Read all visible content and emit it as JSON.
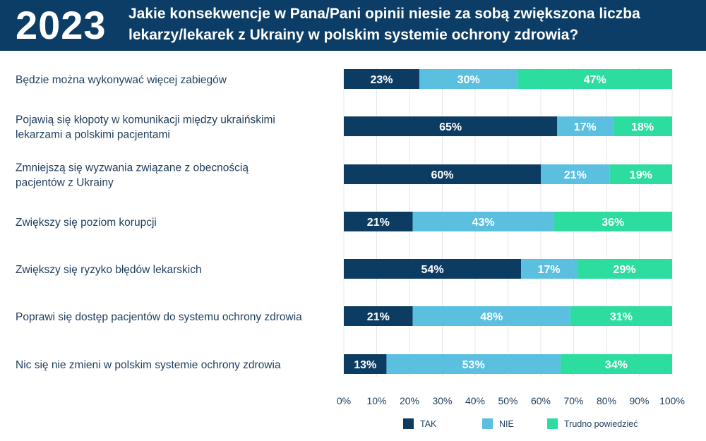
{
  "header": {
    "year": "2023",
    "title": "Jakie konsekwencje w Pana/Pani opinii niesie za sobą zwiększona liczba lekarzy/lekarek z Ukrainy w polskim systemie ochrony zdrowia?"
  },
  "colors": {
    "header_bg": "#0b3d66",
    "tak": "#0d3c63",
    "nie": "#5bbfe0",
    "trudno": "#2ddd9f",
    "label_text": "#1f3d5c"
  },
  "chart_data": {
    "type": "bar",
    "orientation": "horizontal",
    "stacked": true,
    "categories": [
      "Będzie można wykonywać więcej zabiegów",
      "Pojawią się kłopoty w komunikacji między ukraińskimi lekarzami a polskimi pacjentami",
      "Zmniejszą się wyzwania związane z obecnością pacjentów z Ukrainy",
      "Zwiększy się poziom korupcji",
      "Zwiększy się ryzyko błędów lekarskich",
      "Poprawi się dostęp pacjentów do systemu ochrony zdrowia",
      "Nic się nie zmieni w polskim systemie ochrony zdrowia"
    ],
    "category_lines": [
      [
        "Będzie można wykonywać więcej zabiegów"
      ],
      [
        "Pojawią się kłopoty w komunikacji między ukraińskimi",
        "lekarzami a polskimi pacjentami"
      ],
      [
        "Zmniejszą się wyzwania związane z obecnością",
        "pacjentów z Ukrainy"
      ],
      [
        "Zwiększy się poziom korupcji"
      ],
      [
        "Zwiększy się ryzyko błędów lekarskich"
      ],
      [
        "Poprawi się dostęp pacjentów do systemu ochrony zdrowia"
      ],
      [
        "Nic się nie zmieni w polskim systemie ochrony zdrowia"
      ]
    ],
    "series": [
      {
        "name": "TAK",
        "values": [
          23,
          65,
          60,
          21,
          54,
          21,
          13
        ]
      },
      {
        "name": "NIE",
        "values": [
          30,
          17,
          21,
          43,
          17,
          48,
          53
        ]
      },
      {
        "name": "Trudno powiedzieć",
        "values": [
          47,
          18,
          19,
          36,
          29,
          31,
          34
        ]
      }
    ],
    "value_suffix": "%",
    "xlim": [
      0,
      100
    ],
    "xticks": [
      "0%",
      "10%",
      "20%",
      "30%",
      "40%",
      "50%",
      "60%",
      "70%",
      "80%",
      "90%",
      "100%"
    ],
    "grid": true,
    "legend": "bottom"
  }
}
